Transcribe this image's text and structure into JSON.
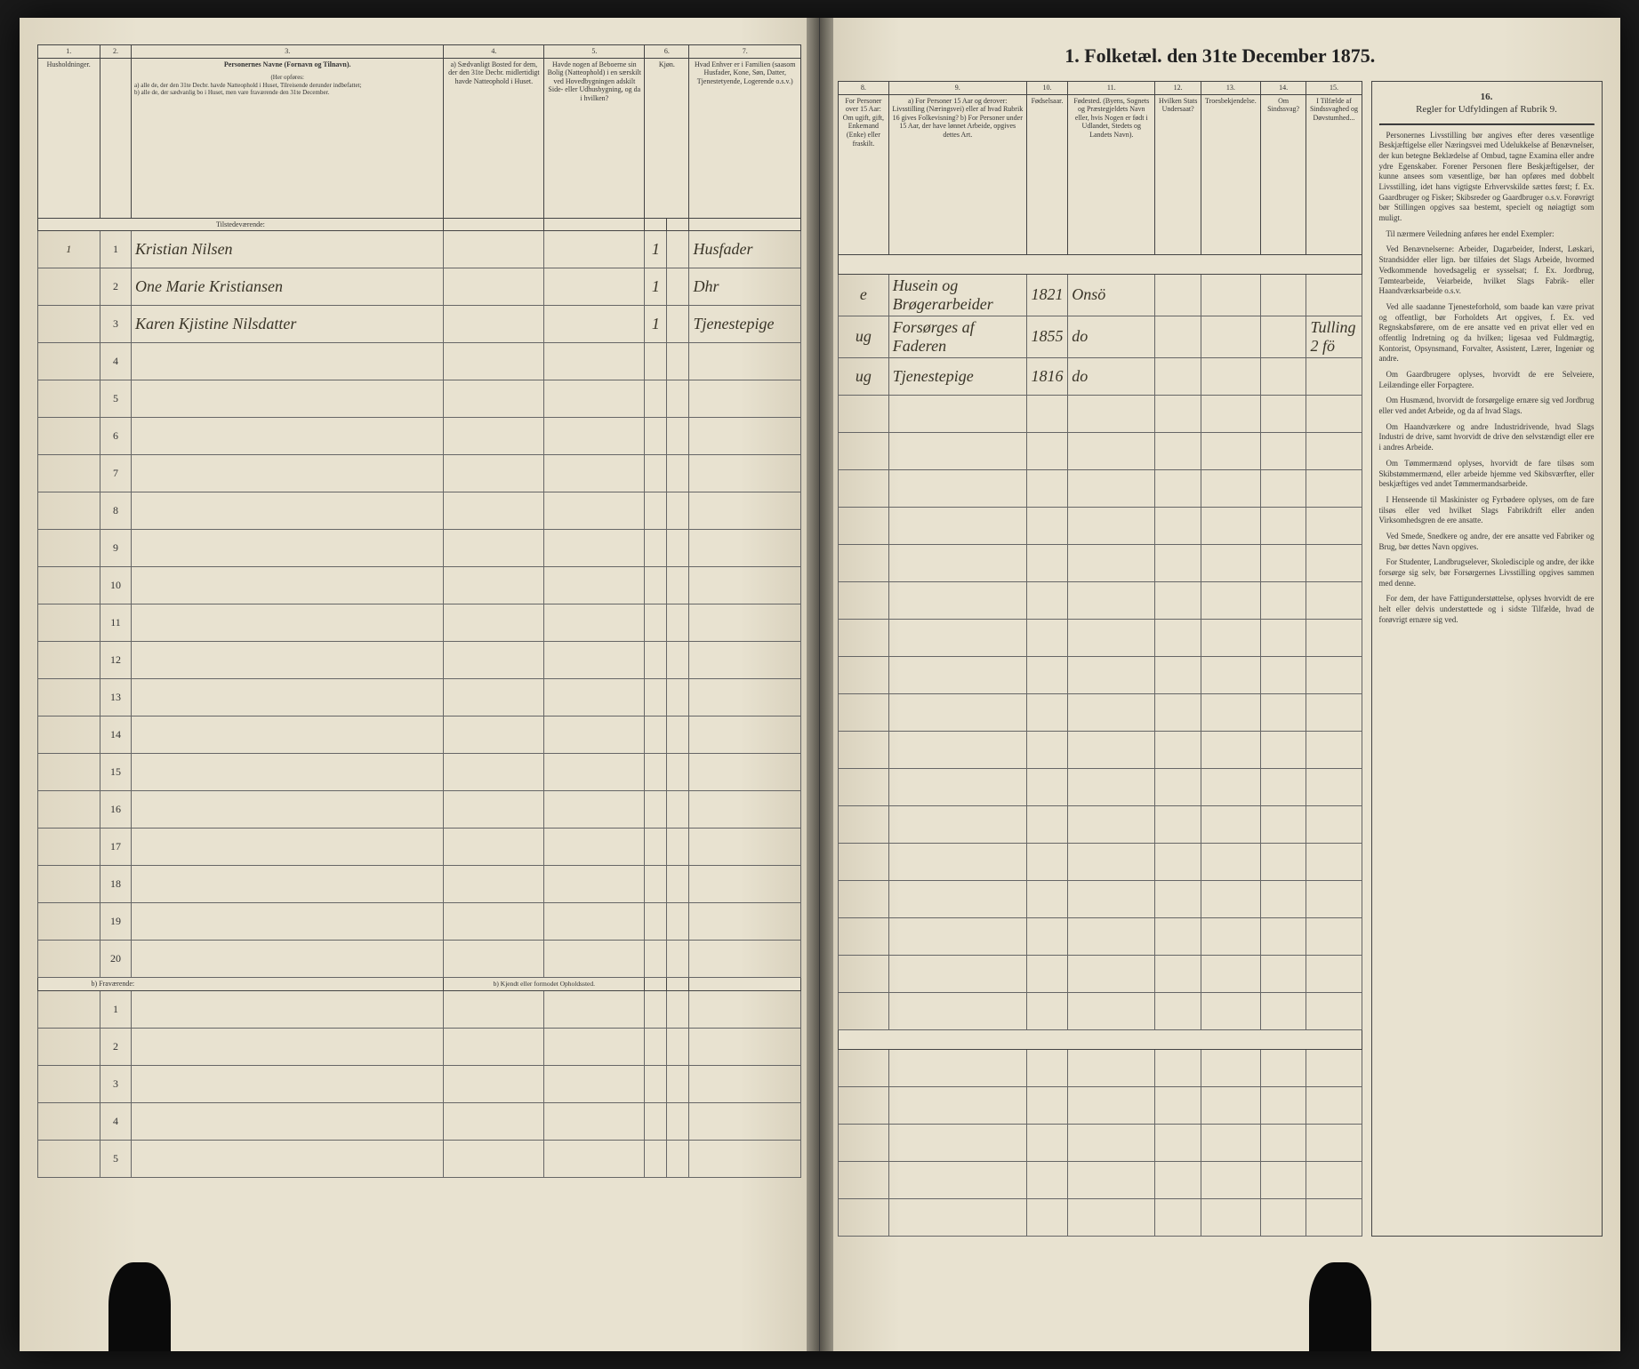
{
  "title": "1. Folketæl. den 31te December 1875.",
  "columns_left": {
    "1": {
      "num": "1.",
      "text": "Husholdninger."
    },
    "2": {
      "num": "2.",
      "text": ""
    },
    "3": {
      "num": "3.",
      "text": "Personernes Navne (Fornavn og Tilnavn).",
      "sub_a": "a) alle de, der den 31te Decbr. havde Natteophold i Huset, Tilreisende derunder indbefattet;",
      "sub_b": "b) alle de, der sædvanlig bo i Huset, men vare fraværende den 31te December."
    },
    "4": {
      "num": "4.",
      "text": "a) Sædvanligt Bosted for dem, der den 31te Decbr. midlertidigt havde Natteophold i Huset."
    },
    "5": {
      "num": "5.",
      "text": "Havde nogen af Beboerne sin Bolig (Natteophold) i en særskilt ved Hovedbygningen adskilt Side- eller Udhusbygning, og da i hvilken?"
    },
    "6": {
      "num": "6.",
      "text": "Kjøn."
    },
    "7": {
      "num": "7.",
      "text": "Hvad Enhver er i Familien (saasom Husfader, Kone, Søn, Datter, Tjenestetyende, Logerende o.s.v.)"
    }
  },
  "columns_right": {
    "8": {
      "num": "8.",
      "text": "For Personer over 15 Aar: Om ugift, gift, Enkemand (Enke) eller fraskilt."
    },
    "9": {
      "num": "9.",
      "text": "a) For Personer 15 Aar og derover: Livsstilling (Næringsvei) eller af hvad Rubrik 16 gives Folkevisning? b) For Personer under 15 Aar, der have lønnet Arbeide, opgives dettes Art."
    },
    "10": {
      "num": "10.",
      "text": "Fødselsaar."
    },
    "11": {
      "num": "11.",
      "text": "Fødested. (Byens, Sognets og Præstegjeldets Navn eller, hvis Nogen er født i Udlandet, Stedets og Landets Navn)."
    },
    "12": {
      "num": "12.",
      "text": "Hvilken Stats Undersaat?"
    },
    "13": {
      "num": "13.",
      "text": "Troesbekjendelse."
    },
    "14": {
      "num": "14.",
      "text": "Om Sindssvag?"
    },
    "15": {
      "num": "15.",
      "text": "I Tilfælde af Sindssvaghed og Døvstumhed..."
    }
  },
  "section_present": "Tilstedeværende:",
  "section_absent": "b) Fraværende:",
  "section_absent_note": "b) Kjendt eller formodet Opholdssted.",
  "rows": [
    {
      "hh": "1",
      "n": "1",
      "name": "Kristian Nilsen",
      "c4": "",
      "c5": "",
      "c6": "1",
      "c7": "Husfader",
      "c8": "e",
      "c9": "Husein og Brøgerarbeider",
      "c10": "1821",
      "c11": "Onsö",
      "c12": "",
      "c13": "",
      "c14": "",
      "c15": ""
    },
    {
      "hh": "",
      "n": "2",
      "name": "One Marie Kristiansen",
      "c4": "",
      "c5": "",
      "c6": "1",
      "c7": "Dhr",
      "c8": "ug",
      "c9": "Forsørges af Faderen",
      "c10": "1855",
      "c11": "do",
      "c12": "",
      "c13": "",
      "c14": "",
      "c15": "Tulling 2 fö"
    },
    {
      "hh": "",
      "n": "3",
      "name": "Karen Kjistine Nilsdatter",
      "c4": "",
      "c5": "",
      "c6": "1",
      "c7": "Tjenestepige",
      "c8": "ug",
      "c9": "Tjenestepige",
      "c10": "1816",
      "c11": "do",
      "c12": "",
      "c13": "",
      "c14": "",
      "c15": ""
    }
  ],
  "empty_rows_present": [
    4,
    5,
    6,
    7,
    8,
    9,
    10,
    11,
    12,
    13,
    14,
    15,
    16,
    17,
    18,
    19,
    20
  ],
  "empty_rows_absent": [
    1,
    2,
    3,
    4,
    5
  ],
  "sidebar": {
    "col16": "16.",
    "title": "Regler for Udfyldingen af Rubrik 9.",
    "p1": "Personernes Livsstilling bør angives efter deres væsentlige Beskjæftigelse eller Næringsvei med Udelukkelse af Benævnelser, der kun betegne Beklædelse af Ombud, tagne Examina eller andre ydre Egenskaber. Forener Personen flere Beskjæftigelser, der kunne ansees som væsentlige, bør han opføres med dobbelt Livsstilling, idet hans vigtigste Erhvervskilde sættes først; f. Ex. Gaardbruger og Fisker; Skibsreder og Gaardbruger o.s.v. Forøvrigt bør Stillingen opgives saa bestemt, specielt og nøiagtigt som muligt.",
    "p2": "Til nærmere Veiledning anføres her endel Exempler:",
    "p3": "Ved Benævnelserne: Arbeider, Dagarbeider, Inderst, Løskari, Strandsidder eller lign. bør tilføies det Slags Arbeide, hvormed Vedkommende hovedsagelig er sysselsat; f. Ex. Jordbrug, Tømtearbeide, Veiarbeide, hvilket Slags Fabrik- eller Haandværksarbeide o.s.v.",
    "p4": "Ved alle saadanne Tjenesteforhold, som baade kan være privat og offentligt, bør Forholdets Art opgives, f. Ex. ved Regnskabsførere, om de ere ansatte ved en privat eller ved en offentlig Indretning og da hvilken; ligesaa ved Fuldmægtig, Kontorist, Opsynsmand, Forvalter, Assistent, Lærer, Ingeniør og andre.",
    "p5": "Om Gaardbrugere oplyses, hvorvidt de ere Selveiere, Leilændinge eller Forpagtere.",
    "p6": "Om Husmænd, hvorvidt de forsørgelige ernære sig ved Jordbrug eller ved andet Arbeide, og da af hvad Slags.",
    "p7": "Om Haandværkere og andre Industridrivende, hvad Slags Industri de drive, samt hvorvidt de drive den selvstændigt eller ere i andres Arbeide.",
    "p8": "Om Tømmermænd oplyses, hvorvidt de fare tilsøs som Skibstømmermænd, eller arbeide hjemme ved Skibsværfter, eller beskjæftiges ved andet Tømmermandsarbeide.",
    "p9": "I Henseende til Maskinister og Fyrbødere oplyses, om de fare tilsøs eller ved hvilket Slags Fabrikdrift eller anden Virksomhedsgren de ere ansatte.",
    "p10": "Ved Smede, Snedkere og andre, der ere ansatte ved Fabriker og Brug, bør dettes Navn opgives.",
    "p11": "For Studenter, Landbrugselever, Skoledisciple og andre, der ikke forsørge sig selv, bør Forsørgernes Livsstilling opgives sammen med denne.",
    "p12": "For dem, der have Fattigunderstøttelse, oplyses hvorvidt de ere helt eller delvis understøttede og i sidste Tilfælde, hvad de forøvrigt ernære sig ved."
  }
}
